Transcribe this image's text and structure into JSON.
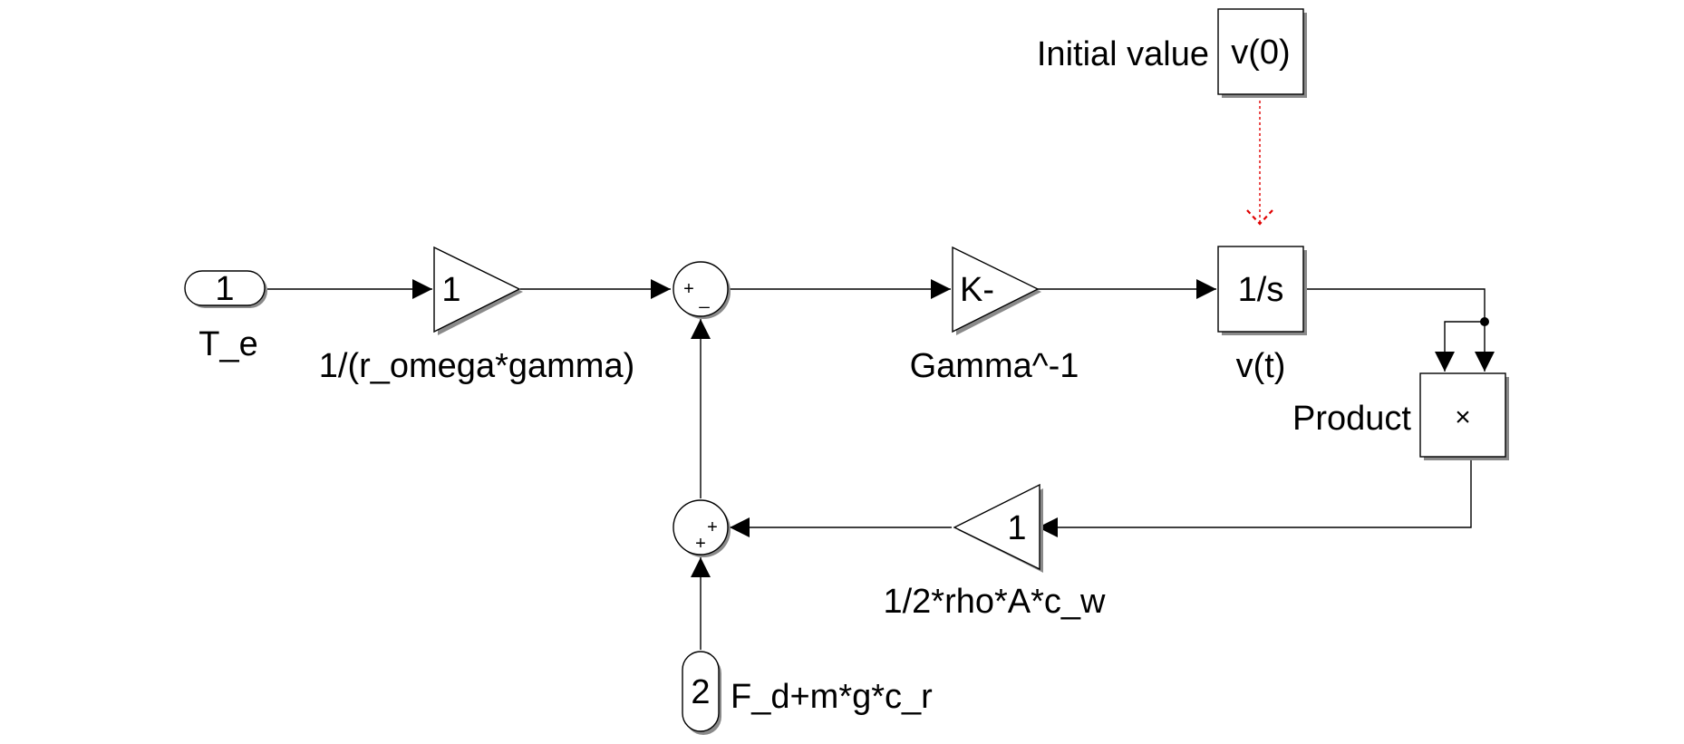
{
  "blocks": {
    "inport1": {
      "number": "1",
      "name": "T_e"
    },
    "gain1": {
      "text": "1",
      "name": "1/(r_omega*gamma)"
    },
    "sum1": {
      "sign_top": "+",
      "sign_bottom": "_"
    },
    "gain2": {
      "text": "K-",
      "name": "Gamma^-1"
    },
    "integrator": {
      "text": "1/s",
      "name": "v(t)"
    },
    "initial_value": {
      "text": "v(0)",
      "name": "Initial value"
    },
    "product": {
      "symbol": "×",
      "name": "Product"
    },
    "gain3": {
      "text": "1",
      "name": "1/2*rho*A*c_w"
    },
    "sum2": {
      "sign_right": "+",
      "sign_bottom": "+"
    },
    "inport2": {
      "number": "2",
      "name": "F_d+m*g*c_r"
    }
  },
  "colors": {
    "line": "#000000",
    "background": "#ffffff",
    "block_shadow": "#8a8a8a",
    "initial_value_connection": "#e00000"
  }
}
